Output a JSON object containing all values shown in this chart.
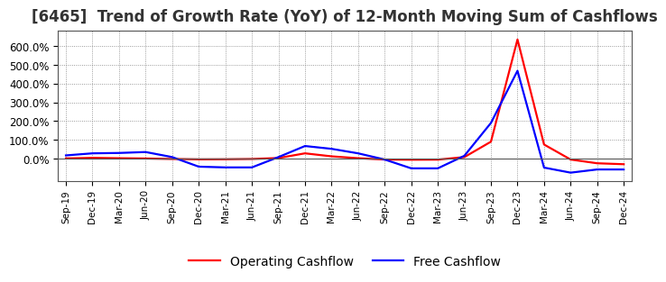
{
  "title": "[6465]  Trend of Growth Rate (YoY) of 12-Month Moving Sum of Cashflows",
  "title_fontsize": 12,
  "background_color": "#ffffff",
  "grid_color": "#808080",
  "x_labels": [
    "Sep-19",
    "Dec-19",
    "Mar-20",
    "Jun-20",
    "Sep-20",
    "Dec-20",
    "Mar-21",
    "Jun-21",
    "Sep-21",
    "Dec-21",
    "Mar-22",
    "Jun-22",
    "Sep-22",
    "Dec-22",
    "Mar-23",
    "Jun-23",
    "Sep-23",
    "Dec-23",
    "Mar-24",
    "Jun-24",
    "Sep-24",
    "Dec-24"
  ],
  "operating_cashflow": [
    1.0,
    4.0,
    2.0,
    0.5,
    -2.0,
    -4.0,
    -3.5,
    -2.0,
    3.0,
    28.0,
    12.0,
    2.0,
    -5.0,
    -6.0,
    -5.5,
    8.0,
    90.0,
    635.0,
    75.0,
    -5.0,
    -25.0,
    -30.0
  ],
  "free_cashflow": [
    17.0,
    28.0,
    30.0,
    35.0,
    8.0,
    -43.0,
    -47.0,
    -47.0,
    8.0,
    67.0,
    52.0,
    28.0,
    -5.0,
    -52.0,
    -52.0,
    15.0,
    190.0,
    468.0,
    -48.0,
    -75.0,
    -58.0,
    -58.0
  ],
  "op_color": "#ff0000",
  "free_color": "#0000ff",
  "line_width": 1.6,
  "ylim_min": -120,
  "ylim_max": 680,
  "yticks": [
    0,
    100,
    200,
    300,
    400,
    500,
    600
  ],
  "ytick_labels": [
    "0.0%",
    "100.0%",
    "200.0%",
    "300.0%",
    "400.0%",
    "500.0%",
    "600.0%"
  ],
  "legend_op": "Operating Cashflow",
  "legend_free": "Free Cashflow"
}
